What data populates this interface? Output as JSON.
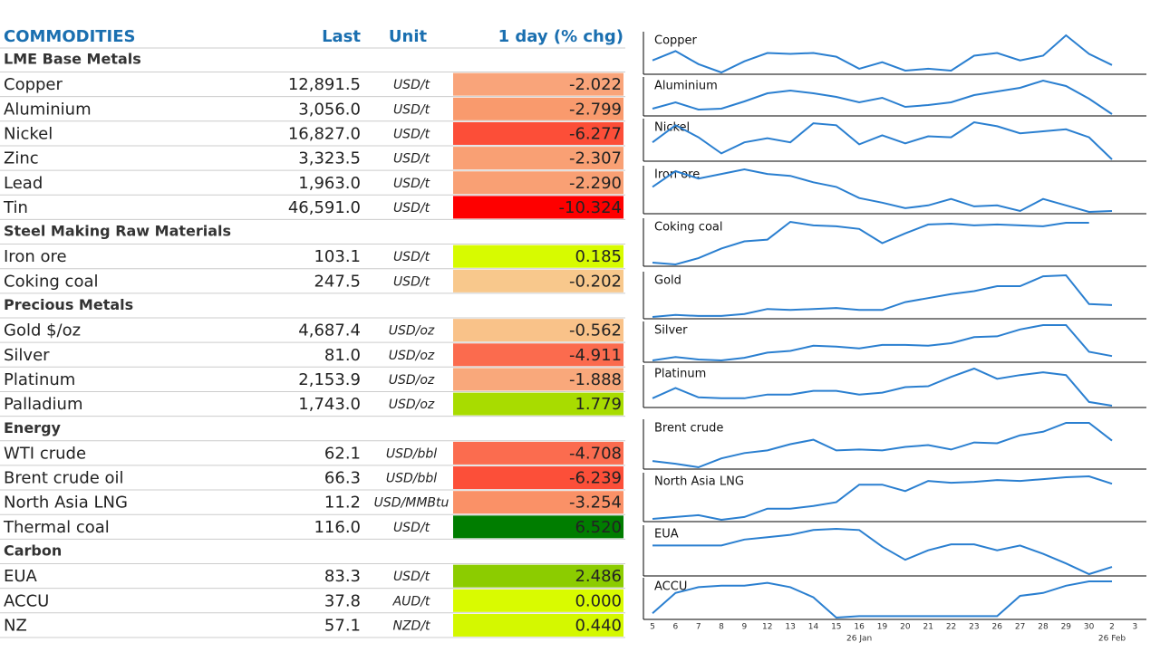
{
  "table": {
    "columns": [
      "COMMODITIES",
      "Last",
      "Unit",
      "1 day (% chg)"
    ],
    "rows": [
      {
        "group": "LME Base Metals"
      },
      {
        "name": "Copper",
        "last": "12,891.5",
        "unit": "USD/t",
        "change": "-2.022",
        "color": "#f9a47a"
      },
      {
        "name": "Aluminium",
        "last": "3,056.0",
        "unit": "USD/t",
        "change": "-2.799",
        "color": "#f99a6d"
      },
      {
        "name": "Nickel",
        "last": "16,827.0",
        "unit": "USD/t",
        "change": "-6.277",
        "color": "#fc4e38"
      },
      {
        "name": "Zinc",
        "last": "3,323.5",
        "unit": "USD/t",
        "change": "-2.307",
        "color": "#f9a074"
      },
      {
        "name": "Lead",
        "last": "1,963.0",
        "unit": "USD/t",
        "change": "-2.290",
        "color": "#f9a074"
      },
      {
        "name": "Tin",
        "last": "46,591.0",
        "unit": "USD/t",
        "change": "-10.324",
        "color": "#fe0000",
        "text_color": "#c00000"
      },
      {
        "group": "Steel Making Raw Materials"
      },
      {
        "name": "Iron ore",
        "last": "103.1",
        "unit": "USD/t",
        "change": "0.185",
        "color": "#d7fb00"
      },
      {
        "name": "Coking coal",
        "last": "247.5",
        "unit": "USD/t",
        "change": "-0.202",
        "color": "#f8c88c"
      },
      {
        "group": "Precious Metals"
      },
      {
        "name": "Gold $/oz",
        "last": "4,687.4",
        "unit": "USD/oz",
        "change": "-0.562",
        "color": "#f9c289"
      },
      {
        "name": "Silver",
        "last": "81.0",
        "unit": "USD/oz",
        "change": "-4.911",
        "color": "#fb6b4e"
      },
      {
        "name": "Platinum",
        "last": "2,153.9",
        "unit": "USD/oz",
        "change": "-1.888",
        "color": "#f9a87b"
      },
      {
        "name": "Palladium",
        "last": "1,743.0",
        "unit": "USD/oz",
        "change": "1.779",
        "color": "#a8dc00"
      },
      {
        "group": "Energy"
      },
      {
        "name": "WTI crude",
        "last": "62.1",
        "unit": "USD/bbl",
        "change": "-4.708",
        "color": "#fb6c4f"
      },
      {
        "name": "Brent crude oil",
        "last": "66.3",
        "unit": "USD/bbl",
        "change": "-6.239",
        "color": "#fc4f39"
      },
      {
        "name": "North Asia LNG",
        "last": "11.2",
        "unit": "USD/MMBtu",
        "change": "-3.254",
        "color": "#fa9167"
      },
      {
        "name": "Thermal coal",
        "last": "116.0",
        "unit": "USD/t",
        "change": "6.520",
        "color": "#007d00",
        "text_color": "#0a4a0a"
      },
      {
        "group": "Carbon"
      },
      {
        "name": "EUA",
        "last": "83.3",
        "unit": "USD/t",
        "change": "2.486",
        "color": "#8ccc00"
      },
      {
        "name": "ACCU",
        "last": "37.8",
        "unit": "AUD/t",
        "change": "0.000",
        "color": "#d9fb00"
      },
      {
        "name": "NZ",
        "last": "57.1",
        "unit": "NZD/t",
        "change": "0.440",
        "color": "#d4f800"
      }
    ]
  },
  "sparklines": {
    "color": "#2a7fd0",
    "x_labels": [
      "5",
      "6",
      "7",
      "8",
      "9",
      "12",
      "13",
      "14",
      "15",
      "16",
      "19",
      "20",
      "21",
      "22",
      "23",
      "26",
      "27",
      "28",
      "29",
      "30",
      "2",
      "3"
    ],
    "months": [
      {
        "text": "26 Jan",
        "under": "16"
      },
      {
        "text": "26 Feb",
        "under": "2"
      }
    ],
    "panels": [
      {
        "label": "Copper",
        "values": [
          15,
          25,
          11,
          2,
          14,
          23,
          22,
          23,
          19,
          6,
          13,
          4,
          6,
          4,
          20,
          23,
          15,
          20,
          42,
          22,
          10,
          null
        ]
      },
      {
        "label": "Aluminium",
        "values": [
          8,
          15,
          7,
          8,
          16,
          25,
          28,
          25,
          21,
          15,
          20,
          10,
          12,
          15,
          23,
          27,
          31,
          39,
          33,
          19,
          2,
          null
        ]
      },
      {
        "label": "Nickel",
        "values": [
          21,
          38,
          26,
          10,
          21,
          25,
          21,
          40,
          38,
          19,
          28,
          20,
          27,
          26,
          41,
          37,
          30,
          32,
          34,
          26,
          4,
          null
        ]
      },
      {
        "label": "Iron ore",
        "values": [
          31,
          48,
          40,
          45,
          50,
          45,
          43,
          36,
          31,
          19,
          14,
          8,
          11,
          18,
          10,
          11,
          5,
          18,
          11,
          4,
          5,
          null
        ]
      },
      {
        "label": "Coking coal",
        "values": [
          4,
          2,
          9,
          20,
          28,
          30,
          50,
          46,
          45,
          42,
          26,
          37,
          47,
          48,
          46,
          47,
          46,
          45,
          49,
          49,
          null,
          null
        ]
      },
      {
        "label": "Gold",
        "values": [
          2,
          4,
          3,
          3,
          5,
          10,
          9,
          10,
          11,
          9,
          9,
          17,
          21,
          25,
          28,
          33,
          33,
          43,
          44,
          15,
          14,
          null
        ]
      },
      {
        "label": "Silver",
        "values": [
          1,
          5,
          2,
          1,
          4,
          10,
          12,
          18,
          17,
          15,
          19,
          19,
          18,
          21,
          28,
          29,
          37,
          42,
          42,
          11,
          6,
          null
        ]
      },
      {
        "label": "Platinum",
        "values": [
          13,
          24,
          14,
          13,
          13,
          17,
          17,
          21,
          21,
          17,
          19,
          25,
          26,
          36,
          45,
          34,
          38,
          41,
          38,
          9,
          5,
          null
        ]
      },
      {
        "label": "Brent crude",
        "values": [
          9,
          6,
          2,
          12,
          18,
          21,
          28,
          33,
          21,
          22,
          21,
          25,
          27,
          22,
          30,
          29,
          38,
          42,
          52,
          52,
          32,
          null
        ]
      },
      {
        "label": "North Asia LNG",
        "values": [
          3,
          5,
          7,
          2,
          5,
          14,
          14,
          17,
          21,
          40,
          40,
          33,
          44,
          42,
          43,
          45,
          44,
          46,
          48,
          49,
          41,
          null
        ]
      },
      {
        "label": "EUA",
        "values": [
          25,
          25,
          25,
          25,
          30,
          32,
          34,
          38,
          39,
          38,
          24,
          13,
          21,
          26,
          26,
          21,
          25,
          18,
          10,
          1,
          7,
          null
        ]
      },
      {
        "label": "ACCU",
        "values": [
          21,
          35,
          39,
          40,
          40,
          42,
          39,
          32,
          18,
          19,
          19,
          19,
          19,
          19,
          19,
          19,
          33,
          35,
          40,
          43,
          43,
          null
        ]
      }
    ]
  }
}
